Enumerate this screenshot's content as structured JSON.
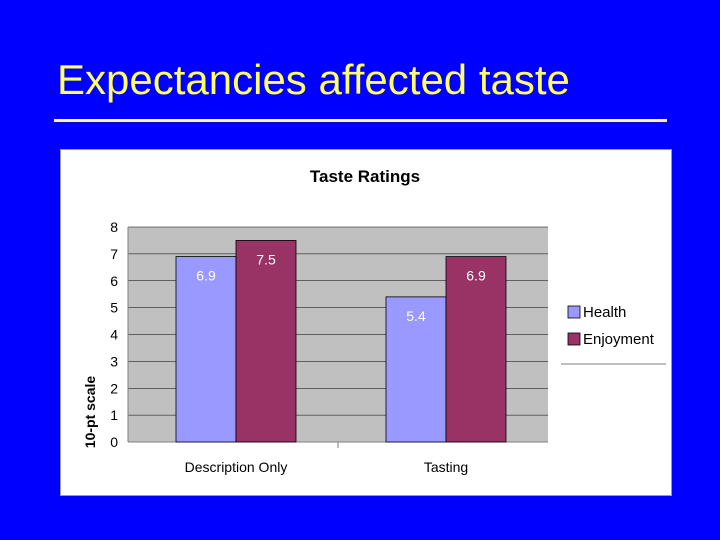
{
  "slide": {
    "title": "Expectancies affected taste"
  },
  "colors": {
    "background": "#0000FF",
    "title": "#FFFF66",
    "health": "#9999FF",
    "enjoyment": "#993366",
    "plot_area": "#C0C0C0"
  },
  "chart_data": {
    "type": "bar",
    "title": "Taste Ratings",
    "xlabel": "",
    "ylabel": "10-pt scale",
    "ylim": [
      0,
      8
    ],
    "yticks": [
      0,
      1,
      2,
      3,
      4,
      5,
      6,
      7,
      8
    ],
    "categories": [
      "Description Only",
      "Tasting"
    ],
    "series": [
      {
        "name": "Health",
        "values": [
          6.9,
          5.4
        ],
        "labels": [
          "6.9",
          "5.4"
        ],
        "color": "#9999FF"
      },
      {
        "name": "Enjoyment",
        "values": [
          7.5,
          6.9
        ],
        "labels": [
          "7.5",
          "6.9"
        ],
        "color": "#993366"
      }
    ],
    "legend_position": "right",
    "grid": true
  }
}
